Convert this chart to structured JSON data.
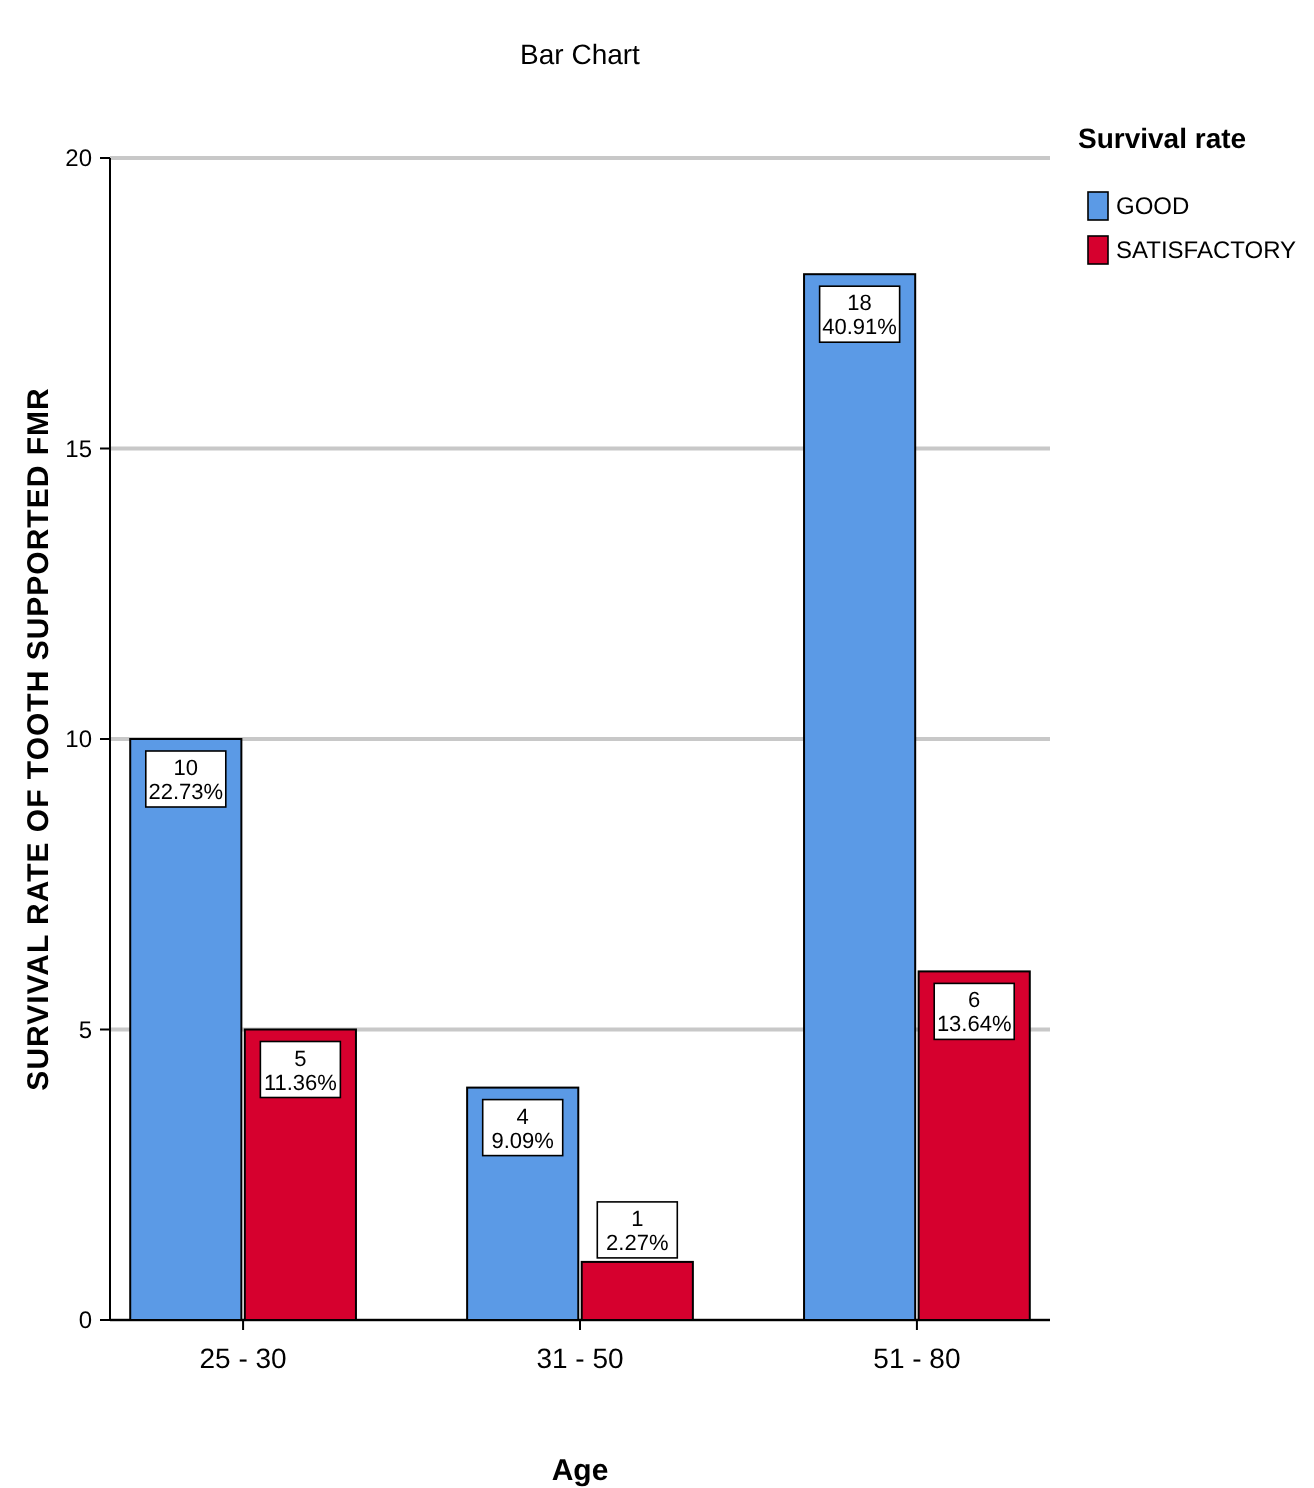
{
  "chart_data": {
    "type": "bar",
    "title": "Bar Chart",
    "xlabel": "Age",
    "ylabel": "SURVIVAL RATE OF TOOTH SUPPORTED FMR",
    "legend_title": "Survival rate",
    "categories": [
      "25 - 30",
      "31 - 50",
      "51 - 80"
    ],
    "series": [
      {
        "name": "GOOD",
        "color": "#5b9ae6",
        "values": [
          10,
          4,
          18
        ],
        "value_labels": [
          "10\n22.73%",
          "4\n9.09%",
          "18\n40.91%"
        ]
      },
      {
        "name": "SATISFACTORY",
        "color": "#d6002e",
        "values": [
          5,
          1,
          6
        ],
        "value_labels": [
          "5\n11.36%",
          "1\n2.27%",
          "6\n13.64%"
        ]
      }
    ],
    "ylim": [
      0,
      20
    ],
    "yticks": [
      0,
      5,
      10,
      15,
      20
    ],
    "grid": "y",
    "legend": "top right"
  }
}
